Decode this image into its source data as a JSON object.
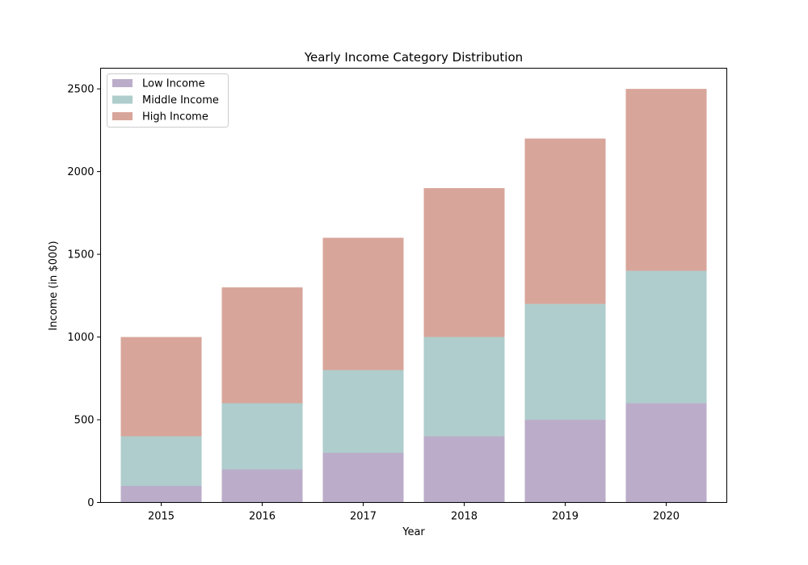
{
  "chart_data": {
    "type": "bar",
    "stacked": true,
    "title": "Yearly Income Category Distribution",
    "xlabel": "Year",
    "ylabel": "Income (in $000)",
    "categories": [
      "2015",
      "2016",
      "2017",
      "2018",
      "2019",
      "2020"
    ],
    "series": [
      {
        "name": "Low Income",
        "values": [
          100,
          200,
          300,
          400,
          500,
          600
        ],
        "color": "#bbadc9"
      },
      {
        "name": "Middle Income",
        "values": [
          300,
          400,
          500,
          600,
          700,
          800
        ],
        "color": "#aecdcc"
      },
      {
        "name": "High Income",
        "values": [
          600,
          700,
          800,
          900,
          1000,
          1100
        ],
        "color": "#d8a59a"
      }
    ],
    "ylim": [
      0,
      2625
    ],
    "yticks": [
      0,
      500,
      1000,
      1500,
      2000,
      2500
    ],
    "grid": false,
    "legend_position": "top-left"
  }
}
